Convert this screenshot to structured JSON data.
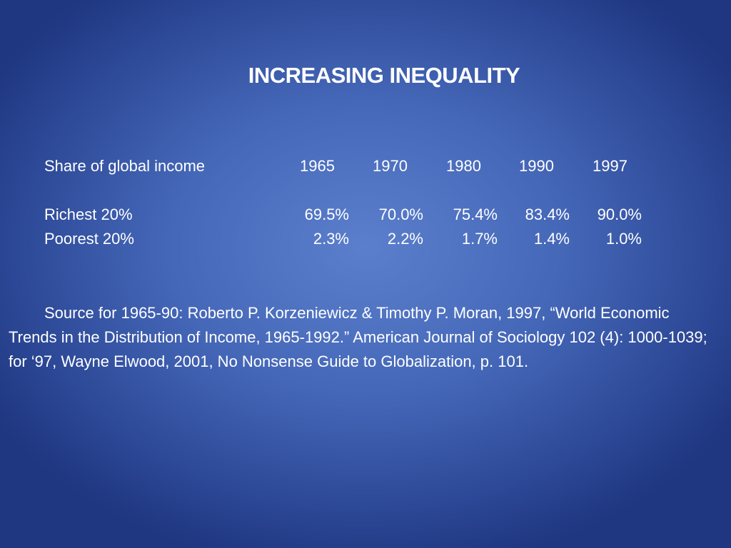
{
  "slide": {
    "title": "INCREASING INEQUALITY",
    "table": {
      "header_label": "Share of global income",
      "years": [
        "1965",
        "1970",
        "1980",
        "1990",
        "1997"
      ],
      "rows": [
        {
          "label": "Richest 20%",
          "values": [
            "69.5%",
            "70.0%",
            "75.4%",
            "83.4%",
            "90.0%"
          ]
        },
        {
          "label": "Poorest 20%",
          "values": [
            "2.3%",
            "2.2%",
            "1.7%",
            "1.4%",
            "1.0%"
          ]
        }
      ]
    },
    "source": "Source for 1965-90: Roberto P. Korzeniewicz & Timothy P. Moran, 1997, “World Economic Trends in the Distribution of Income, 1965-1992.”  American Journal of Sociology 102 (4): 1000-1039; for ‘97, Wayne Elwood, 2001, No Nonsense Guide to Globalization, p. 101."
  }
}
